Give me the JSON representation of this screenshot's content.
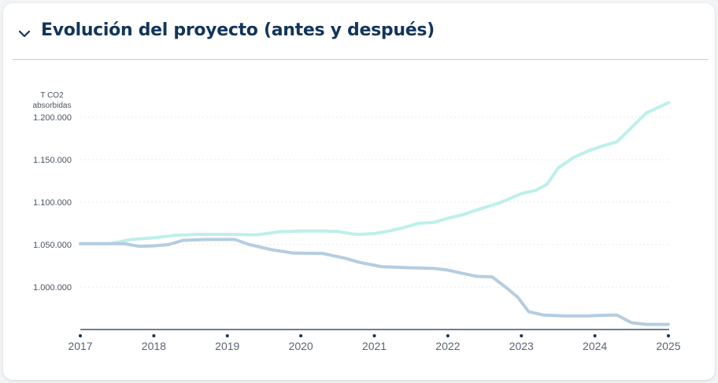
{
  "header": {
    "title": "Evolución del proyecto (antes y después)",
    "toggle_icon": "chevron-down-icon"
  },
  "colors": {
    "title": "#12355b",
    "series_with_project": "#bdf0ea",
    "series_without_project": "#b5cde0",
    "axis": "#12355b",
    "grid": "#e6e9ed"
  },
  "chart_data": {
    "type": "line",
    "ylabel_lines": [
      "T CO2",
      "absorbidas"
    ],
    "xlabel": "",
    "x_ticks": [
      "2017",
      "2018",
      "2019",
      "2020",
      "2021",
      "2022",
      "2023",
      "2024",
      "2025"
    ],
    "y_ticks": [
      1000000,
      1050000,
      1100000,
      1150000,
      1200000
    ],
    "y_tick_labels": [
      "1.000.000",
      "1.050.000",
      "1.100.000",
      "1.150.000",
      "1.200.000"
    ],
    "ylim": [
      950000,
      1225000
    ],
    "xlim": [
      2017,
      2025
    ],
    "grid": "horizontal dotted",
    "legend": "none",
    "series": [
      {
        "color_key": "series_with_project",
        "points": [
          [
            2017.0,
            1051000
          ],
          [
            2017.4,
            1051000
          ],
          [
            2017.7,
            1056000
          ],
          [
            2018.0,
            1058000
          ],
          [
            2018.3,
            1061000
          ],
          [
            2018.6,
            1062000
          ],
          [
            2019.0,
            1062000
          ],
          [
            2019.4,
            1061500
          ],
          [
            2019.7,
            1065000
          ],
          [
            2020.0,
            1066000
          ],
          [
            2020.3,
            1066000
          ],
          [
            2020.5,
            1065500
          ],
          [
            2020.7,
            1062500
          ],
          [
            2020.8,
            1062000
          ],
          [
            2021.0,
            1063000
          ],
          [
            2021.2,
            1066000
          ],
          [
            2021.4,
            1070000
          ],
          [
            2021.6,
            1075000
          ],
          [
            2021.8,
            1076000
          ],
          [
            2022.0,
            1081000
          ],
          [
            2022.2,
            1085000
          ],
          [
            2022.4,
            1091000
          ],
          [
            2022.7,
            1099000
          ],
          [
            2023.0,
            1110000
          ],
          [
            2023.2,
            1114000
          ],
          [
            2023.35,
            1121000
          ],
          [
            2023.5,
            1140000
          ],
          [
            2023.7,
            1152000
          ],
          [
            2023.9,
            1160000
          ],
          [
            2024.1,
            1166000
          ],
          [
            2024.3,
            1171000
          ],
          [
            2024.5,
            1188000
          ],
          [
            2024.7,
            1205000
          ],
          [
            2025.0,
            1217000
          ]
        ]
      },
      {
        "color_key": "series_without_project",
        "points": [
          [
            2017.0,
            1051000
          ],
          [
            2017.6,
            1051000
          ],
          [
            2017.8,
            1048000
          ],
          [
            2018.0,
            1048500
          ],
          [
            2018.2,
            1050000
          ],
          [
            2018.4,
            1055000
          ],
          [
            2018.7,
            1056000
          ],
          [
            2019.1,
            1056000
          ],
          [
            2019.3,
            1050000
          ],
          [
            2019.6,
            1044000
          ],
          [
            2019.9,
            1040000
          ],
          [
            2020.3,
            1039500
          ],
          [
            2020.6,
            1034000
          ],
          [
            2020.8,
            1029000
          ],
          [
            2021.1,
            1024000
          ],
          [
            2021.4,
            1023000
          ],
          [
            2021.8,
            1022000
          ],
          [
            2022.0,
            1020000
          ],
          [
            2022.2,
            1016000
          ],
          [
            2022.4,
            1012500
          ],
          [
            2022.6,
            1012000
          ],
          [
            2022.8,
            999000
          ],
          [
            2022.95,
            988000
          ],
          [
            2023.1,
            971000
          ],
          [
            2023.3,
            967000
          ],
          [
            2023.6,
            966000
          ],
          [
            2023.9,
            966000
          ],
          [
            2024.0,
            966500
          ],
          [
            2024.3,
            967000
          ],
          [
            2024.5,
            958000
          ],
          [
            2024.7,
            956000
          ],
          [
            2025.0,
            956000
          ]
        ]
      }
    ]
  }
}
